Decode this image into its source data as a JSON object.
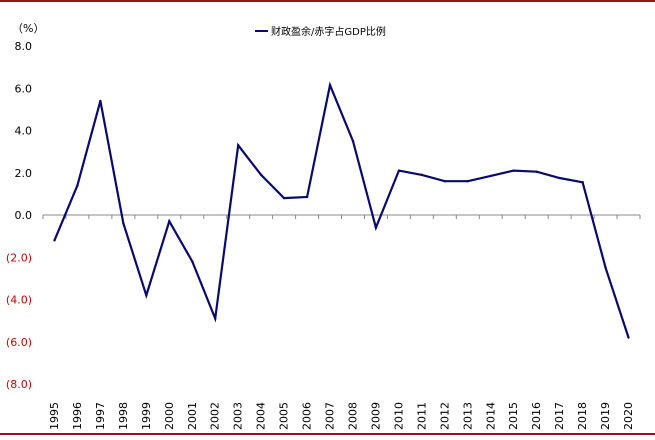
{
  "chart_data": {
    "type": "line",
    "unit_label": "（%）",
    "legend": "财政盈余/赤字占GDP比例",
    "x": [
      "1995",
      "1996",
      "1997",
      "1998",
      "1999",
      "2000",
      "2001",
      "2002",
      "2003",
      "2004",
      "2005",
      "2006",
      "2007",
      "2008",
      "2009",
      "2010",
      "2011",
      "2012",
      "2013",
      "2014",
      "2015",
      "2016",
      "2017",
      "2018",
      "2019",
      "2020"
    ],
    "series": [
      {
        "name": "财政盈余/赤字占GDP比例",
        "values": [
          -1.2,
          1.4,
          5.4,
          -0.4,
          -3.8,
          -0.3,
          -2.2,
          -4.9,
          3.3,
          1.9,
          0.8,
          0.85,
          6.15,
          3.5,
          -0.6,
          2.1,
          1.9,
          1.6,
          1.6,
          1.85,
          2.1,
          2.05,
          1.75,
          1.55,
          -2.5,
          -5.8
        ]
      }
    ],
    "ylim": [
      -8,
      8
    ],
    "yticks": [
      {
        "value": 8,
        "label": "8.0"
      },
      {
        "value": 6,
        "label": "6.0"
      },
      {
        "value": 4,
        "label": "4.0"
      },
      {
        "value": 2,
        "label": "2.0"
      },
      {
        "value": 0,
        "label": "0.0"
      },
      {
        "value": -2,
        "label": "(2.0)"
      },
      {
        "value": -4,
        "label": "(4.0)"
      },
      {
        "value": -6,
        "label": "(6.0)"
      },
      {
        "value": -8,
        "label": "(8.0)"
      }
    ],
    "colors": {
      "line": "#0a0a6e",
      "negative_tick_label": "#cc0000",
      "positive_tick_label": "#000000",
      "frame_rule": "#8b1a1a"
    },
    "grid": false,
    "legend_position": "top-center"
  }
}
